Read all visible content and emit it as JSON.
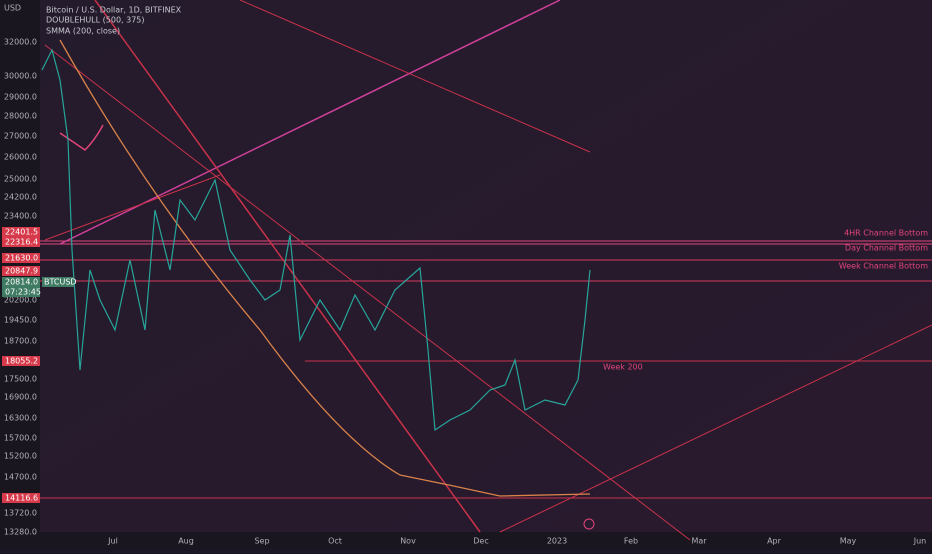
{
  "header": {
    "title": "Bitcoin / U.S. Dollar, 1D, BITFINEX",
    "indicators": [
      "DOUBLEHULL (500, 375)",
      "SMMA (200, close)"
    ]
  },
  "price_axis": {
    "currency": "USD",
    "labels": [
      "32000.0",
      "30000.0",
      "29000.0",
      "28000.0",
      "27000.0",
      "26000.0",
      "25000.0",
      "24200.0",
      "23400.0",
      "20200.0",
      "19450.0",
      "18700.0",
      "17500.0",
      "16900.0",
      "16300.0",
      "15700.0",
      "15200.0",
      "14700.0",
      "13720.0",
      "13280.0"
    ]
  },
  "price_tags": [
    {
      "label": "22401.5"
    },
    {
      "label": "22316.4"
    },
    {
      "label": "21630.0"
    },
    {
      "label": "20847.9"
    },
    {
      "label": "20814.0",
      "symbol": "BTCUSD",
      "countdown": "07:23:45"
    },
    {
      "label": "18055.2"
    },
    {
      "label": "14116.6"
    }
  ],
  "time_axis": {
    "labels": [
      "Jul",
      "Aug",
      "Sep",
      "Oct",
      "Nov",
      "Dec",
      "2023",
      "Feb",
      "Mar",
      "Apr",
      "May",
      "Jun"
    ]
  },
  "annotations": [
    "4HR Channel Bottom",
    "Day Channel Bottom",
    "Week Channel Bottom",
    "Week 200"
  ]
}
